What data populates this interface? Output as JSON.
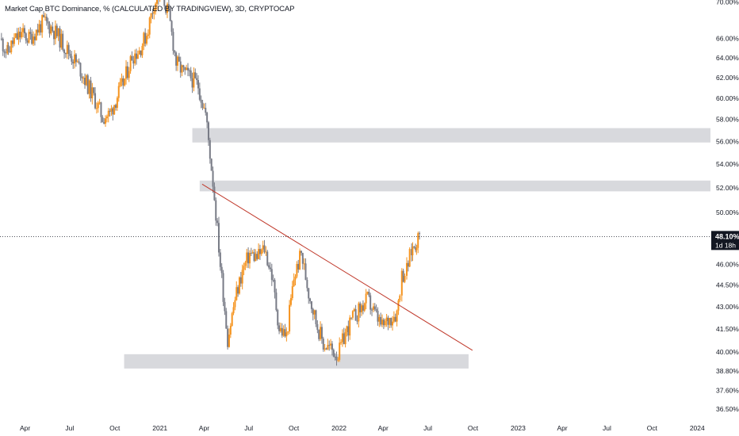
{
  "chart_data": {
    "type": "candlestick",
    "title": "Market Cap BTC Dominance, % (CALCULATED BY TRADINGVIEW), 3D, CRYPTOCAP",
    "y_axis": {
      "scale": "log",
      "tick_labels": [
        "70.00%",
        "66.00%",
        "64.00%",
        "62.00%",
        "60.00%",
        "58.00%",
        "56.00%",
        "54.00%",
        "52.00%",
        "50.00%",
        "46.00%",
        "44.50%",
        "43.00%",
        "41.50%",
        "40.00%",
        "38.80%",
        "37.60%",
        "36.50%"
      ],
      "tick_values": [
        70,
        66,
        64,
        62,
        60,
        58,
        56,
        54,
        52,
        50,
        46,
        44.5,
        43,
        41.5,
        40,
        38.8,
        37.6,
        36.5
      ],
      "range": [
        36.0,
        70.2
      ]
    },
    "x_axis": {
      "tick_labels": [
        "Apr",
        "Jul",
        "Oct",
        "2021",
        "Apr",
        "Jul",
        "Oct",
        "2022",
        "Apr",
        "Jul",
        "Oct",
        "2023",
        "Apr",
        "Jul",
        "Oct",
        "2024"
      ],
      "tick_dates": [
        "2020-04-01",
        "2020-07-01",
        "2020-10-01",
        "2021-01-01",
        "2021-04-01",
        "2021-07-01",
        "2021-10-01",
        "2022-01-01",
        "2022-04-01",
        "2022-07-01",
        "2022-10-01",
        "2023-01-01",
        "2023-04-01",
        "2023-07-01",
        "2023-10-01",
        "2024-01-01"
      ],
      "range": [
        "2020-02-10",
        "2024-01-28"
      ]
    },
    "current_price": {
      "value": "48.10%",
      "countdown": "1d 18h",
      "level": 48.1
    },
    "zones": [
      {
        "x_start": "2021-03-08",
        "x_end": "2024-01-28",
        "y_low": 55.9,
        "y_high": 57.2
      },
      {
        "x_start": "2021-03-23",
        "x_end": "2024-01-28",
        "y_low": 51.7,
        "y_high": 52.6
      },
      {
        "x_start": "2020-10-20",
        "x_end": "2022-09-22",
        "y_low": 38.95,
        "y_high": 39.85
      }
    ],
    "trendline": {
      "start": {
        "date": "2021-03-28",
        "value": 52.3
      },
      "end": {
        "date": "2022-09-30",
        "value": 40.1
      },
      "color": "#c0392b"
    },
    "colors": {
      "up": "#f5931e",
      "down": "#787b86",
      "zone": "#d8d9dd",
      "badge": "#131722"
    },
    "series": [
      {
        "date": "2020-02-10",
        "value": 66.0
      },
      {
        "date": "2020-02-25",
        "value": 64.5
      },
      {
        "date": "2020-03-10",
        "value": 65.8
      },
      {
        "date": "2020-03-25",
        "value": 66.5
      },
      {
        "date": "2020-04-09",
        "value": 66.0
      },
      {
        "date": "2020-04-24",
        "value": 66.8
      },
      {
        "date": "2020-05-09",
        "value": 67.8
      },
      {
        "date": "2020-05-24",
        "value": 67.2
      },
      {
        "date": "2020-06-08",
        "value": 66.2
      },
      {
        "date": "2020-06-23",
        "value": 65.0
      },
      {
        "date": "2020-07-08",
        "value": 64.0
      },
      {
        "date": "2020-07-23",
        "value": 62.8
      },
      {
        "date": "2020-08-07",
        "value": 61.2
      },
      {
        "date": "2020-08-22",
        "value": 59.8
      },
      {
        "date": "2020-09-06",
        "value": 58.2
      },
      {
        "date": "2020-09-21",
        "value": 58.5
      },
      {
        "date": "2020-10-06",
        "value": 60.2
      },
      {
        "date": "2020-10-21",
        "value": 61.8
      },
      {
        "date": "2020-11-05",
        "value": 64.2
      },
      {
        "date": "2020-11-20",
        "value": 64.8
      },
      {
        "date": "2020-12-05",
        "value": 66.5
      },
      {
        "date": "2020-12-20",
        "value": 69.8
      },
      {
        "date": "2021-01-04",
        "value": 71.0
      },
      {
        "date": "2021-01-19",
        "value": 68.5
      },
      {
        "date": "2021-02-03",
        "value": 63.5
      },
      {
        "date": "2021-02-18",
        "value": 62.5
      },
      {
        "date": "2021-03-05",
        "value": 62.0
      },
      {
        "date": "2021-03-20",
        "value": 61.2
      },
      {
        "date": "2021-04-04",
        "value": 58.5
      },
      {
        "date": "2021-04-19",
        "value": 52.5
      },
      {
        "date": "2021-05-04",
        "value": 46.0
      },
      {
        "date": "2021-05-19",
        "value": 40.8
      },
      {
        "date": "2021-06-03",
        "value": 43.5
      },
      {
        "date": "2021-06-18",
        "value": 45.5
      },
      {
        "date": "2021-07-03",
        "value": 46.8
      },
      {
        "date": "2021-07-18",
        "value": 46.5
      },
      {
        "date": "2021-08-02",
        "value": 47.2
      },
      {
        "date": "2021-08-17",
        "value": 45.2
      },
      {
        "date": "2021-09-01",
        "value": 41.5
      },
      {
        "date": "2021-09-16",
        "value": 41.0
      },
      {
        "date": "2021-10-01",
        "value": 45.0
      },
      {
        "date": "2021-10-16",
        "value": 46.8
      },
      {
        "date": "2021-10-31",
        "value": 44.0
      },
      {
        "date": "2021-11-15",
        "value": 42.0
      },
      {
        "date": "2021-11-30",
        "value": 40.5
      },
      {
        "date": "2021-12-15",
        "value": 40.2
      },
      {
        "date": "2021-12-30",
        "value": 39.8
      },
      {
        "date": "2022-01-14",
        "value": 41.2
      },
      {
        "date": "2022-01-29",
        "value": 42.2
      },
      {
        "date": "2022-02-13",
        "value": 42.8
      },
      {
        "date": "2022-02-28",
        "value": 43.5
      },
      {
        "date": "2022-03-15",
        "value": 42.5
      },
      {
        "date": "2022-03-30",
        "value": 41.6
      },
      {
        "date": "2022-04-14",
        "value": 42.2
      },
      {
        "date": "2022-04-29",
        "value": 42.6
      },
      {
        "date": "2022-05-09",
        "value": 45.2
      },
      {
        "date": "2022-05-19",
        "value": 45.6
      },
      {
        "date": "2022-05-29",
        "value": 47.0
      },
      {
        "date": "2022-06-06",
        "value": 47.6
      },
      {
        "date": "2022-06-14",
        "value": 48.1
      }
    ]
  }
}
